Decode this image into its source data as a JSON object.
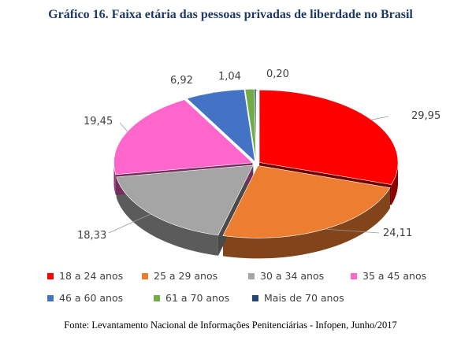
{
  "chart_data": {
    "type": "pie",
    "title": "Gráfico 16. Faixa etária das pessoas privadas de liberdade no Brasil",
    "categories": [
      "18 a 24 anos",
      "25 a 29 anos",
      "30 a 34 anos",
      "35 a 45 anos",
      "46 a 60 anos",
      "61 a 70 anos",
      "Mais de 70 anos"
    ],
    "values": [
      29.95,
      24.11,
      18.33,
      19.45,
      6.92,
      1.04,
      0.2
    ],
    "data_labels": [
      "29,95",
      "24,11",
      "18,33",
      "19,45",
      "6,92",
      "1,04",
      "0,20"
    ],
    "colors": [
      "#ff0000",
      "#ed7d31",
      "#a5a5a5",
      "#ff66cc",
      "#4472c4",
      "#70ad47",
      "#264478"
    ],
    "legend": "bottom",
    "style": "3d-exploded"
  },
  "source": "Fonte: Levantamento Nacional de Informações Penitenciárias - Infopen, Junho/2017"
}
